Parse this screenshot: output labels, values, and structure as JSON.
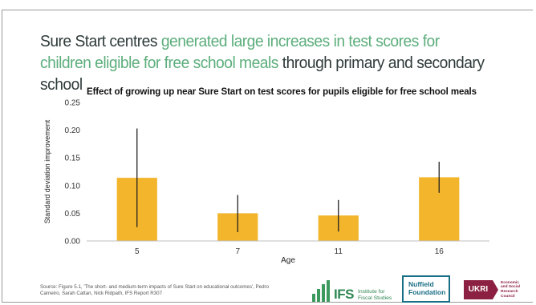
{
  "headline": {
    "part1": "Sure Start centres ",
    "part2": "generated large increases in test scores for children eligible for free school meals",
    "part3": " through primary and secondary school"
  },
  "colors": {
    "headline_dark": "#2f3a3a",
    "headline_green": "#5cae7c",
    "bar": "#f2b52b",
    "errorbar": "#222222",
    "axis": "#bfbfbf"
  },
  "chart_data": {
    "type": "bar",
    "title": "Effect of growing up near Sure Start on test scores for pupils eligible for free school meals",
    "xlabel": "Age",
    "ylabel": "Standard deviation improvement",
    "categories": [
      "5",
      "7",
      "11",
      "16"
    ],
    "values": [
      0.114,
      0.05,
      0.046,
      0.115
    ],
    "error_low": [
      0.025,
      0.016,
      0.017,
      0.087
    ],
    "error_high": [
      0.203,
      0.083,
      0.074,
      0.143
    ],
    "ylim": [
      0,
      0.25
    ],
    "yticks": [
      "0.00",
      "0.05",
      "0.10",
      "0.15",
      "0.20",
      "0.25"
    ],
    "grid": false,
    "legend": "none"
  },
  "source": "Source: Figure 5.1, 'The short- and medium-term impacts of Sure Start on educational outcomes', Pedro Carneiro, Sarah Cattan, Nick Ridpath, IFS Report R307",
  "logos": {
    "ifs_main": "IFS",
    "ifs_sub_1": "Institute for",
    "ifs_sub_2": "Fiscal Studies",
    "nuffield_1": "Nuffield",
    "nuffield_2": "Foundation",
    "ukri_mark": "UKRI",
    "ukri_1": "Economic",
    "ukri_2": "and Social",
    "ukri_3": "Research Council"
  }
}
